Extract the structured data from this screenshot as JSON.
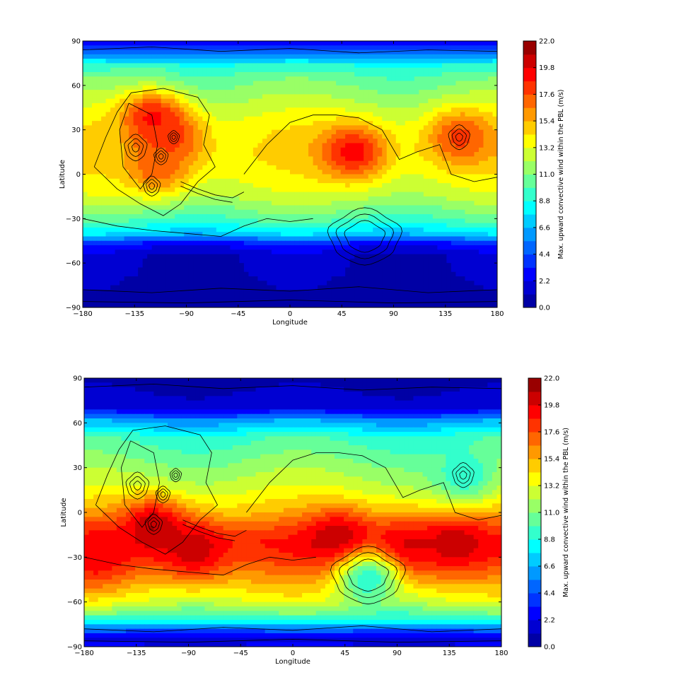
{
  "chart_data": [
    {
      "type": "heatmap",
      "title": "",
      "xlabel": "Longitude",
      "ylabel": "Latitude",
      "xlim": [
        -180,
        180
      ],
      "ylim": [
        -90,
        90
      ],
      "x_ticks": [
        "−180",
        "−135",
        "−90",
        "−45",
        "0",
        "45",
        "90",
        "135",
        "180"
      ],
      "y_ticks": [
        "90",
        "60",
        "30",
        "0",
        "−30",
        "−60",
        "−90"
      ],
      "colorbar": {
        "label": "Max. upward convective wind within the PBL (m/s)",
        "range": [
          0,
          22
        ],
        "ticks": [
          "22.0",
          "19.8",
          "17.6",
          "15.4",
          "13.2",
          "11.0",
          "8.8",
          "6.6",
          "4.4",
          "2.2",
          "0.0"
        ],
        "levels": 20,
        "colormap": [
          "#00008f",
          "#0000ff",
          "#0080ff",
          "#00ffff",
          "#80ff80",
          "#ffff00",
          "#ff8000",
          "#ff0000",
          "#800000"
        ]
      },
      "latitude_profile": [
        {
          "lat": 90,
          "value": 2.0
        },
        {
          "lat": 80,
          "value": 6.0
        },
        {
          "lat": 72,
          "value": 9.5
        },
        {
          "lat": 60,
          "value": 11.0
        },
        {
          "lat": 45,
          "value": 12.5
        },
        {
          "lat": 30,
          "value": 13.8
        },
        {
          "lat": 15,
          "value": 14.2
        },
        {
          "lat": 0,
          "value": 13.6
        },
        {
          "lat": -15,
          "value": 12.4
        },
        {
          "lat": -30,
          "value": 10.0
        },
        {
          "lat": -40,
          "value": 7.5
        },
        {
          "lat": -47,
          "value": 3.0
        },
        {
          "lat": -55,
          "value": 1.2
        },
        {
          "lat": -90,
          "value": 0.8
        }
      ],
      "hotspots": [
        {
          "lon": -105,
          "lat": 25,
          "value": 18.5
        },
        {
          "lon": -120,
          "lat": 38,
          "value": 19.0
        },
        {
          "lon": -115,
          "lat": 5,
          "value": 17.5
        },
        {
          "lon": 55,
          "lat": 15,
          "value": 19.5
        },
        {
          "lon": 148,
          "lat": 25,
          "value": 18.0
        },
        {
          "lon": -175,
          "lat": 18,
          "value": 14.5
        }
      ]
    },
    {
      "type": "heatmap",
      "title": "",
      "xlabel": "Longitude",
      "ylabel": "Latitude",
      "xlim": [
        -180,
        180
      ],
      "ylim": [
        -90,
        90
      ],
      "x_ticks": [
        "−180",
        "−135",
        "−90",
        "−45",
        "0",
        "45",
        "90",
        "135",
        "180"
      ],
      "y_ticks": [
        "90",
        "60",
        "30",
        "0",
        "−30",
        "−60",
        "−90"
      ],
      "colorbar": {
        "label": "Max. upward convective wind within the PBL (m/s)",
        "range": [
          0,
          22
        ],
        "ticks": [
          "22.0",
          "19.8",
          "17.6",
          "15.4",
          "13.2",
          "11.0",
          "8.8",
          "6.6",
          "4.4",
          "2.2",
          "0.0"
        ],
        "levels": 20,
        "colormap": [
          "#00008f",
          "#0000ff",
          "#0080ff",
          "#00ffff",
          "#80ff80",
          "#ffff00",
          "#ff8000",
          "#ff0000",
          "#800000"
        ]
      },
      "latitude_profile": [
        {
          "lat": 90,
          "value": 0.8
        },
        {
          "lat": 70,
          "value": 1.5
        },
        {
          "lat": 62,
          "value": 6.0
        },
        {
          "lat": 50,
          "value": 9.5
        },
        {
          "lat": 30,
          "value": 11.5
        },
        {
          "lat": 15,
          "value": 13.0
        },
        {
          "lat": 0,
          "value": 15.0
        },
        {
          "lat": -10,
          "value": 17.0
        },
        {
          "lat": -20,
          "value": 18.5
        },
        {
          "lat": -30,
          "value": 17.8
        },
        {
          "lat": -45,
          "value": 15.5
        },
        {
          "lat": -60,
          "value": 13.0
        },
        {
          "lat": -72,
          "value": 9.0
        },
        {
          "lat": -80,
          "value": 4.0
        },
        {
          "lat": -85,
          "value": 1.5
        },
        {
          "lat": -90,
          "value": 2.5
        }
      ],
      "hotspots": [
        {
          "lon": -120,
          "lat": -10,
          "value": 21.0
        },
        {
          "lon": -85,
          "lat": -25,
          "value": 20.5
        },
        {
          "lon": 40,
          "lat": -18,
          "value": 21.0
        },
        {
          "lon": 95,
          "lat": -25,
          "value": 20.5
        },
        {
          "lon": 140,
          "lat": -20,
          "value": 20.5
        },
        {
          "lon": -170,
          "lat": -30,
          "value": 19.5
        },
        {
          "lon": 65,
          "lat": -45,
          "value": 9.0
        },
        {
          "lon": 148,
          "lat": 25,
          "value": 9.0
        }
      ]
    }
  ]
}
